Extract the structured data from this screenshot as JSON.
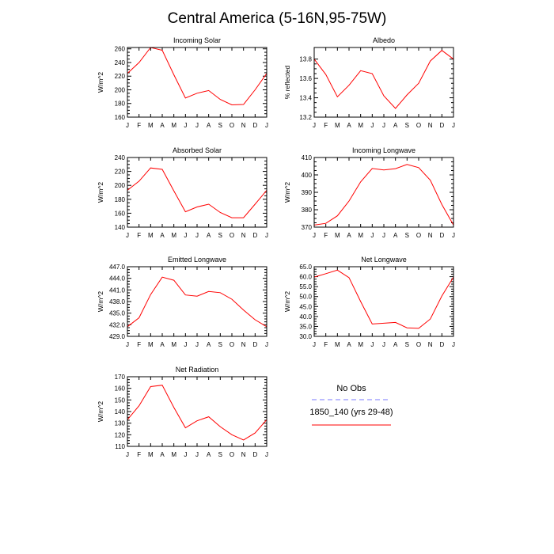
{
  "title": "Central America (5-16N,95-75W)",
  "colors": {
    "model": "#ff0000",
    "obs": "#7a7aff"
  },
  "legend": {
    "obs_label": "No Obs",
    "model_label": "1850_140 (yrs 29-48)"
  },
  "chart_data": [
    {
      "type": "line",
      "title": "Incoming Solar",
      "ylabel": "W/m^2",
      "categories": [
        "J",
        "F",
        "M",
        "A",
        "M",
        "J",
        "J",
        "A",
        "S",
        "O",
        "N",
        "D",
        "J"
      ],
      "yticks": [
        "160",
        "180",
        "200",
        "220",
        "240",
        "260"
      ],
      "ylim": [
        160,
        262
      ],
      "series": [
        {
          "name": "1850_140 (yrs 29-48)",
          "values": [
            224,
            240,
            262,
            258,
            222,
            188,
            195,
            199,
            186,
            178,
            178.5,
            200,
            224
          ]
        }
      ]
    },
    {
      "type": "line",
      "title": "Albedo",
      "ylabel": "% reflected",
      "categories": [
        "J",
        "F",
        "M",
        "A",
        "M",
        "J",
        "J",
        "A",
        "S",
        "O",
        "N",
        "D",
        "J"
      ],
      "yticks": [
        "13.2",
        "13.4",
        "13.6",
        "13.8"
      ],
      "ylim": [
        13.2,
        13.92
      ],
      "series": [
        {
          "name": "1850_140 (yrs 29-48)",
          "values": [
            13.8,
            13.64,
            13.41,
            13.53,
            13.68,
            13.65,
            13.42,
            13.29,
            13.43,
            13.55,
            13.78,
            13.89,
            13.8
          ]
        }
      ]
    },
    {
      "type": "line",
      "title": "Absorbed Solar",
      "ylabel": "W/m^2",
      "categories": [
        "J",
        "F",
        "M",
        "A",
        "M",
        "J",
        "J",
        "A",
        "S",
        "O",
        "N",
        "D",
        "J"
      ],
      "yticks": [
        "140",
        "160",
        "180",
        "200",
        "220",
        "240"
      ],
      "ylim": [
        140,
        240
      ],
      "series": [
        {
          "name": "1850_140 (yrs 29-48)",
          "values": [
            193,
            206,
            225,
            223,
            192,
            162,
            169,
            173,
            161,
            153.5,
            153.5,
            173,
            193
          ]
        }
      ]
    },
    {
      "type": "line",
      "title": "Incoming Longwave",
      "ylabel": "W/m^2",
      "categories": [
        "J",
        "F",
        "M",
        "A",
        "M",
        "J",
        "J",
        "A",
        "S",
        "O",
        "N",
        "D",
        "J"
      ],
      "yticks": [
        "370",
        "380",
        "390",
        "400",
        "410"
      ],
      "ylim": [
        370,
        410
      ],
      "series": [
        {
          "name": "1850_140 (yrs 29-48)",
          "values": [
            371.2,
            372.2,
            376.5,
            385,
            396,
            403.7,
            402.8,
            403.6,
            406,
            404.2,
            397,
            383,
            371.2
          ]
        }
      ]
    },
    {
      "type": "line",
      "title": "Emitted Longwave",
      "ylabel": "W/m^2",
      "categories": [
        "J",
        "F",
        "M",
        "A",
        "M",
        "J",
        "J",
        "A",
        "S",
        "O",
        "N",
        "D",
        "J"
      ],
      "yticks": [
        "429.0",
        "432.0",
        "435.0",
        "438.0",
        "441.0",
        "444.0",
        "447.0"
      ],
      "ylim": [
        429,
        447
      ],
      "series": [
        {
          "name": "1850_140 (yrs 29-48)",
          "values": [
            431.5,
            433.8,
            439.8,
            444.3,
            443.5,
            439.7,
            439.4,
            440.6,
            440.3,
            438.6,
            435.8,
            433.3,
            431.5
          ]
        }
      ]
    },
    {
      "type": "line",
      "title": "Net Longwave",
      "ylabel": "W/m^2",
      "categories": [
        "J",
        "F",
        "M",
        "A",
        "M",
        "J",
        "J",
        "A",
        "S",
        "O",
        "N",
        "D",
        "J"
      ],
      "yticks": [
        "30.0",
        "35.0",
        "40.0",
        "45.0",
        "50.0",
        "55.0",
        "60.0",
        "65.0"
      ],
      "ylim": [
        30,
        65
      ],
      "series": [
        {
          "name": "1850_140 (yrs 29-48)",
          "values": [
            59.8,
            61.5,
            63.3,
            59.5,
            47.5,
            36.2,
            36.6,
            37,
            34.3,
            34,
            38.7,
            50.3,
            59.8
          ]
        }
      ]
    },
    {
      "type": "line",
      "title": "Net Radiation",
      "ylabel": "W/m^2",
      "categories": [
        "J",
        "F",
        "M",
        "A",
        "M",
        "J",
        "J",
        "A",
        "S",
        "O",
        "N",
        "D",
        "J"
      ],
      "yticks": [
        "110",
        "120",
        "130",
        "140",
        "150",
        "160",
        "170"
      ],
      "ylim": [
        110,
        170
      ],
      "series": [
        {
          "name": "1850_140 (yrs 29-48)",
          "values": [
            133,
            145,
            161.5,
            162.7,
            143.5,
            126,
            132,
            135.5,
            127,
            120,
            115.5,
            121.5,
            133
          ]
        }
      ]
    }
  ]
}
